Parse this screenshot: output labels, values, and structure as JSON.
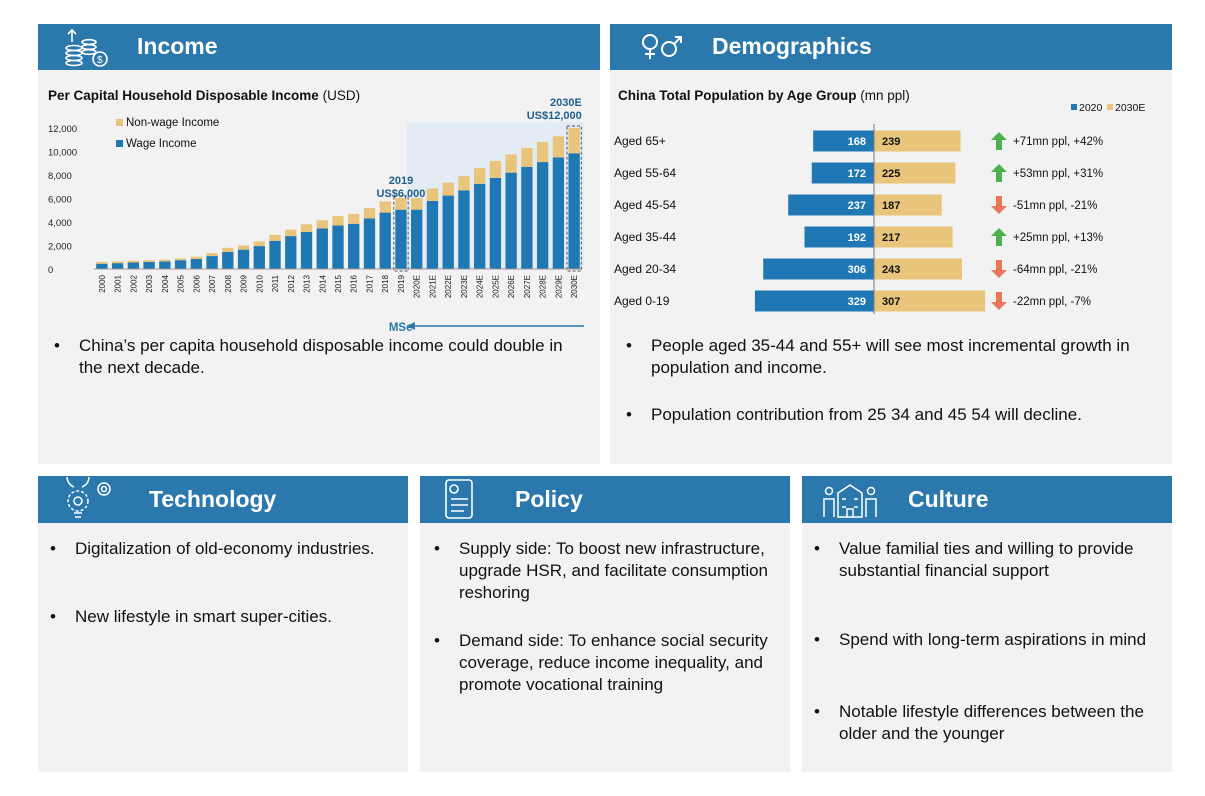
{
  "income": {
    "title": "Income",
    "bullets": [
      "China’s per capita household disposable income could double in the next decade."
    ]
  },
  "demographics": {
    "title": "Demographics",
    "bullets": [
      "People aged 35-44 and 55+ will see most incremental growth in population and income.",
      "Population contribution from 25 34 and 45 54 will decline."
    ]
  },
  "technology": {
    "title": "Technology",
    "bullets": [
      "Digitalization of old-economy industries.",
      "New lifestyle in smart super-cities."
    ]
  },
  "policy": {
    "title": "Policy",
    "bullets": [
      "Supply side: To boost new infrastructure, upgrade HSR, and facilitate consumption reshoring",
      "Demand side: To enhance social security coverage, reduce income inequality, and promote vocational training"
    ]
  },
  "culture": {
    "title": "Culture",
    "bullets": [
      "Value familial ties and willing to provide substantial financial support",
      "Spend with long-term aspirations in mind",
      "Notable lifestyle differences between the older and the younger"
    ]
  },
  "chart_data": [
    {
      "type": "bar",
      "stacked": true,
      "title": "Per Capital Household Disposable Income",
      "title_unit": "(USD)",
      "categories": [
        "2000",
        "2001",
        "2002",
        "2003",
        "2004",
        "2005",
        "2006",
        "2007",
        "2008",
        "2009",
        "2010",
        "2011",
        "2012",
        "2013",
        "2014",
        "2015",
        "2016",
        "2017",
        "2018",
        "2019",
        "2020E",
        "2021E",
        "2022E",
        "2023E",
        "2024E",
        "2025E",
        "2026E",
        "2027E",
        "2028E",
        "2029E",
        "2030E"
      ],
      "series": [
        {
          "name": "Wage Income",
          "color": "#1f78b4",
          "values": [
            450,
            500,
            550,
            600,
            650,
            750,
            850,
            1100,
            1450,
            1650,
            1950,
            2400,
            2800,
            3150,
            3450,
            3700,
            3850,
            4300,
            4800,
            5050,
            5050,
            5800,
            6250,
            6700,
            7250,
            7750,
            8200,
            8700,
            9100,
            9500,
            9850
          ]
        },
        {
          "name": "Non-wage Income",
          "color": "#e8c57a",
          "values": [
            150,
            150,
            150,
            150,
            150,
            150,
            200,
            250,
            350,
            350,
            400,
            500,
            550,
            650,
            700,
            800,
            850,
            900,
            950,
            1000,
            1000,
            1050,
            1100,
            1200,
            1350,
            1450,
            1550,
            1600,
            1700,
            1800,
            2150
          ]
        }
      ],
      "ylim": [
        0,
        12000
      ],
      "yticks": [
        "0",
        "2,000",
        "4,000",
        "6,000",
        "8,000",
        "10,000",
        "12,000"
      ],
      "ytick_values": [
        0,
        2000,
        4000,
        6000,
        8000,
        10000,
        12000
      ],
      "grid": false,
      "legend_position": "top-left",
      "annotations": [
        {
          "label": "2019",
          "sublabel": "US$6,000",
          "category": "2019"
        },
        {
          "label": "2030E",
          "sublabel": "US$12,000",
          "category": "2030E"
        }
      ],
      "arrow_label": "MSe"
    },
    {
      "type": "bar",
      "orientation": "horizontal",
      "title": "China Total Population by Age Group",
      "title_unit": "(mn ppl)",
      "categories": [
        "Aged 65+",
        "Aged 55-64",
        "Aged 45-54",
        "Aged 35-44",
        "Aged 20-34",
        "Aged 0-19"
      ],
      "series": [
        {
          "name": "2020",
          "color": "#1f78b4",
          "values": [
            168,
            172,
            237,
            192,
            306,
            329
          ]
        },
        {
          "name": "2030E",
          "color": "#e8c57a",
          "values": [
            239,
            225,
            187,
            217,
            243,
            307
          ]
        }
      ],
      "changes": [
        {
          "text": "+71mn ppl, +42%",
          "direction": "up"
        },
        {
          "text": "+53mn ppl, +31%",
          "direction": "up"
        },
        {
          "text": "-51mn ppl, -21%",
          "direction": "down"
        },
        {
          "text": "+25mn ppl, +13%",
          "direction": "up"
        },
        {
          "text": "-64mn ppl, -21%",
          "direction": "down"
        },
        {
          "text": "-22mn ppl, -7%",
          "direction": "down"
        }
      ],
      "legend_position": "top-right",
      "colors": {
        "up": "#4caf50",
        "down": "#e8775a"
      }
    }
  ]
}
